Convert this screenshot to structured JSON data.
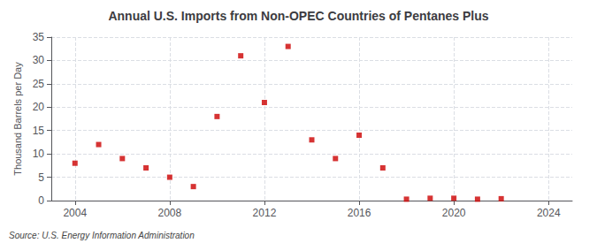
{
  "chart_data": {
    "type": "scatter",
    "title": "Annual U.S. Imports from Non-OPEC Countries of Pentanes Plus",
    "ylabel": "Thousand Barrels per Day",
    "annotation": "Source: U.S. Energy Information Administration",
    "x": [
      2004,
      2005,
      2006,
      2007,
      2008,
      2009,
      2010,
      2011,
      2012,
      2013,
      2014,
      2015,
      2016,
      2017,
      2018,
      2019,
      2020,
      2021,
      2022
    ],
    "values": [
      8,
      12,
      9,
      7,
      5,
      3,
      18,
      31,
      21,
      33,
      13,
      9,
      14,
      7,
      0.3,
      0.5,
      0.5,
      0.3,
      0.4
    ],
    "color": "#cc0000",
    "marker": "square",
    "xlim": [
      2003,
      2025
    ],
    "xticks": [
      2004,
      2008,
      2012,
      2016,
      2020,
      2024
    ],
    "ylim": [
      0,
      35
    ],
    "yticks": [
      0,
      5,
      10,
      15,
      20,
      25,
      30,
      35
    ],
    "grid": true
  }
}
